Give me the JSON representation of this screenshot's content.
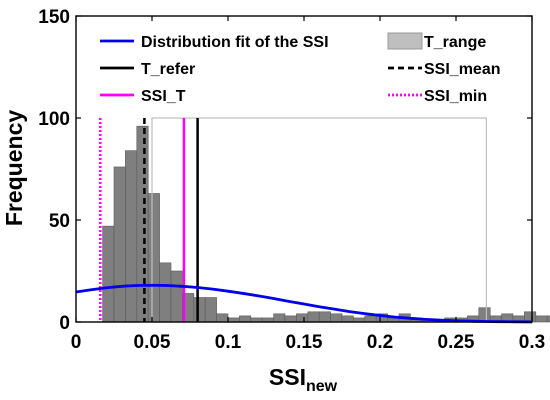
{
  "chart_data": {
    "type": "bar",
    "xlabel": "SSI",
    "xlabel_sub": "new",
    "ylabel": "Frequency",
    "xlim": [
      0,
      0.3
    ],
    "ylim": [
      0,
      150
    ],
    "x_ticks": [
      0,
      0.05,
      0.1,
      0.15,
      0.2,
      0.25,
      0.3
    ],
    "x_tick_labels": [
      "0",
      "0.05",
      "0.1",
      "0.15",
      "0.2",
      "0.25",
      "0.3"
    ],
    "y_ticks": [
      0,
      50,
      100,
      150
    ],
    "y_tick_labels": [
      "0",
      "50",
      "100",
      "150"
    ],
    "grid": false,
    "legend_placement": "top, two columns",
    "histogram": {
      "bin_width": 0.0075,
      "bin_start": 0.0175,
      "color": "#7f7f7f",
      "counts": [
        47,
        76,
        84,
        96,
        63,
        29,
        25,
        14,
        12,
        12,
        4,
        2,
        3,
        2,
        2,
        4,
        3,
        4,
        5,
        5,
        4,
        3,
        2,
        3,
        4,
        2,
        4,
        2,
        1,
        1,
        2,
        2,
        3,
        7,
        3,
        4,
        3,
        5,
        3,
        3,
        4,
        9,
        4,
        3,
        3,
        3,
        4,
        4
      ]
    },
    "t_range": {
      "label": "T_range",
      "x_from": 0.05,
      "x_to": 0.27,
      "top": 100,
      "color": "#bfbfbf"
    },
    "distribution_fit": {
      "label": "Distribution fit of the SSI",
      "color": "#0000ee",
      "x": [
        0,
        0.01,
        0.02,
        0.03,
        0.04,
        0.05,
        0.06,
        0.07,
        0.08,
        0.09,
        0.1,
        0.11,
        0.12,
        0.13,
        0.14,
        0.15,
        0.16,
        0.17,
        0.18,
        0.19,
        0.2,
        0.21,
        0.22,
        0.23,
        0.24,
        0.25,
        0.26,
        0.27,
        0.28,
        0.29,
        0.3
      ],
      "y": [
        14.7,
        15.8,
        16.8,
        17.5,
        17.9,
        18.0,
        17.9,
        17.5,
        16.9,
        16.1,
        15.1,
        14.0,
        12.8,
        11.5,
        10.1,
        8.8,
        7.5,
        6.3,
        5.1,
        4.1,
        3.2,
        2.4,
        1.8,
        1.3,
        0.9,
        0.6,
        0.4,
        0.25,
        0.15,
        0.08,
        0.04
      ]
    },
    "reference_lines": [
      {
        "label": "T_refer",
        "x": 0.08,
        "color": "#000000",
        "style": "solid"
      },
      {
        "label": "SSI_mean",
        "x": 0.045,
        "color": "#000000",
        "style": "dashed"
      },
      {
        "label": "SSI_T",
        "x": 0.071,
        "color": "#ff00ff",
        "style": "solid"
      },
      {
        "label": "SSI_min",
        "x": 0.016,
        "color": "#ff00ff",
        "style": "dotted"
      }
    ],
    "legend": [
      {
        "label": "Distribution fit of the SSI",
        "kind": "line",
        "color": "#0000ee",
        "style": "solid"
      },
      {
        "label": "T_range",
        "kind": "patch",
        "color": "#bfbfbf",
        "style": "solid"
      },
      {
        "label": "T_refer",
        "kind": "line",
        "color": "#000000",
        "style": "solid"
      },
      {
        "label": "SSI_mean",
        "kind": "line",
        "color": "#000000",
        "style": "dashed"
      },
      {
        "label": "SSI_T",
        "kind": "line",
        "color": "#ff00ff",
        "style": "solid"
      },
      {
        "label": "SSI_min",
        "kind": "line",
        "color": "#ff00ff",
        "style": "dotted"
      }
    ]
  }
}
